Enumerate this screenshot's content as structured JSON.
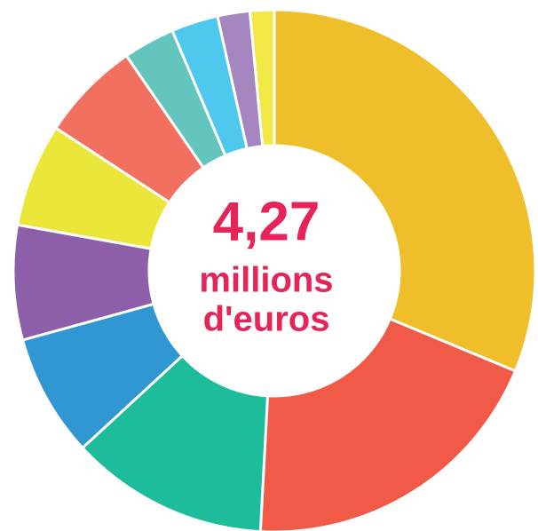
{
  "chart_data": {
    "type": "donut",
    "center_text": [
      "4,27",
      "millions",
      "d'euros"
    ],
    "values": [
      31.3,
      19.6,
      12.3,
      7.6,
      7.1,
      6.4,
      6.2,
      3.2,
      2.9,
      2.0,
      1.5
    ],
    "colors": [
      "#efbf2b",
      "#f05a46",
      "#1dbc9b",
      "#3097d3",
      "#8d5fa8",
      "#ebe63a",
      "#f2705f",
      "#63c5be",
      "#4fc8ee",
      "#a686c1",
      "#f2e846"
    ]
  }
}
